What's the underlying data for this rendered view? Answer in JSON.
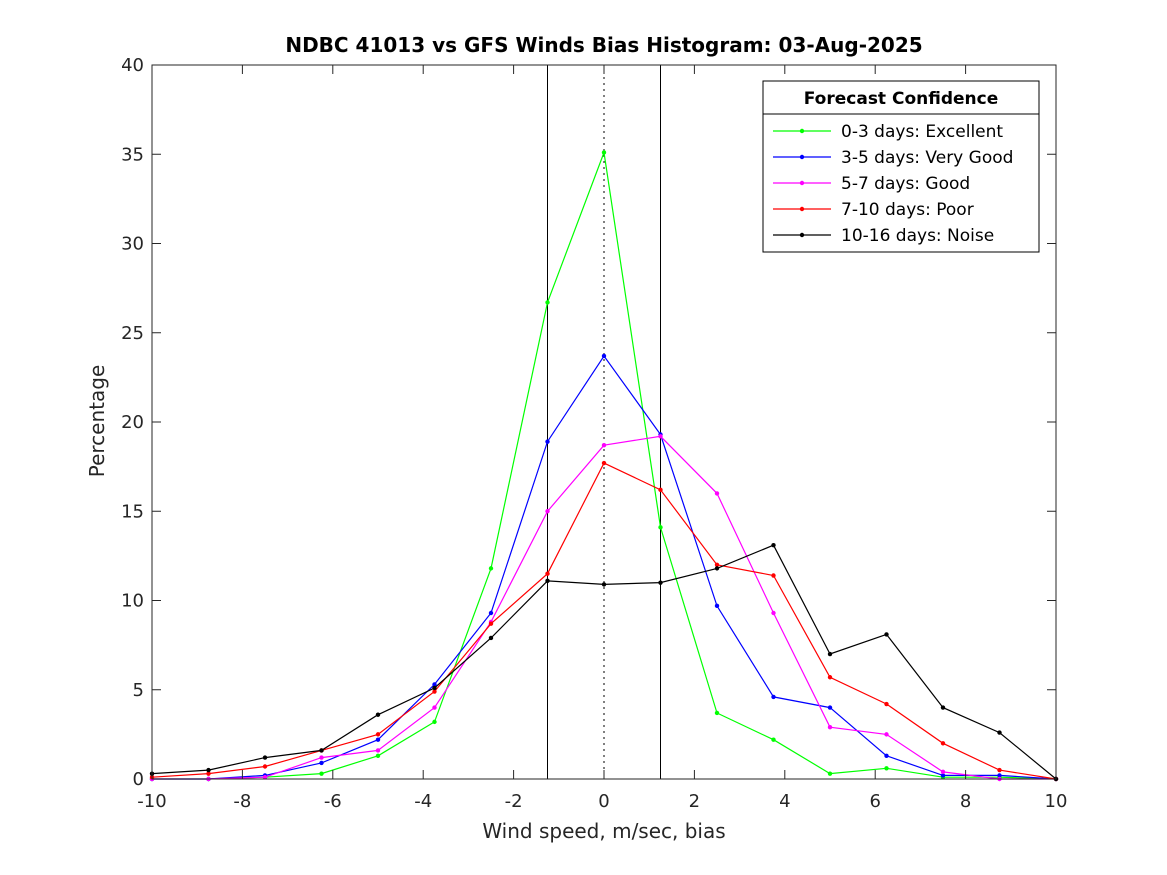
{
  "chart_data": {
    "type": "line",
    "title": "NDBC 41013 vs GFS Winds Bias Histogram: 03-Aug-2025",
    "xlabel": "Wind speed, m/sec, bias",
    "ylabel": "Percentage",
    "xlim": [
      -10,
      10
    ],
    "ylim": [
      0,
      40
    ],
    "xticks": [
      -10,
      -8,
      -6,
      -4,
      -2,
      0,
      2,
      4,
      6,
      8,
      10
    ],
    "yticks": [
      0,
      5,
      10,
      15,
      20,
      25,
      30,
      35,
      40
    ],
    "grid": false,
    "legend_title": "Forecast Confidence",
    "legend_position": "top-right",
    "vertical_lines": [
      {
        "x": -1.25,
        "style": "solid"
      },
      {
        "x": 0,
        "style": "dotted"
      },
      {
        "x": 1.25,
        "style": "solid"
      }
    ],
    "x": [
      -10,
      -8.75,
      -7.5,
      -6.25,
      -5,
      -3.75,
      -2.5,
      -1.25,
      0,
      1.25,
      2.5,
      3.75,
      5,
      6.25,
      7.5,
      8.75,
      10
    ],
    "series": [
      {
        "name": "0-3 days: Excellent",
        "color": "#00ff00",
        "values": [
          0,
          0,
          0.1,
          0.3,
          1.3,
          3.2,
          11.8,
          26.7,
          35.1,
          14.1,
          3.7,
          2.2,
          0.3,
          0.6,
          0.1,
          0.1,
          0
        ]
      },
      {
        "name": "3-5 days: Very Good",
        "color": "#0000ff",
        "values": [
          0,
          0,
          0.2,
          0.9,
          2.2,
          5.3,
          9.3,
          18.9,
          23.7,
          19.3,
          9.7,
          4.6,
          4.0,
          1.3,
          0.2,
          0.2,
          0
        ]
      },
      {
        "name": "5-7 days: Good",
        "color": "#ff00ff",
        "values": [
          0,
          0,
          0.1,
          1.2,
          1.6,
          4.0,
          8.8,
          15.0,
          18.7,
          19.2,
          16.0,
          9.3,
          2.9,
          2.5,
          0.4,
          0,
          0
        ]
      },
      {
        "name": "7-10 days: Poor",
        "color": "#ff0000",
        "values": [
          0.1,
          0.3,
          0.7,
          1.6,
          2.5,
          4.9,
          8.7,
          11.5,
          17.7,
          16.2,
          12.0,
          11.4,
          5.7,
          4.2,
          2.0,
          0.5,
          0
        ]
      },
      {
        "name": "10-16 days: Noise",
        "color": "#000000",
        "values": [
          0.3,
          0.5,
          1.2,
          1.6,
          3.6,
          5.1,
          7.9,
          11.1,
          10.9,
          11.0,
          11.8,
          13.1,
          7.0,
          8.1,
          4.0,
          2.6,
          0
        ]
      }
    ]
  }
}
